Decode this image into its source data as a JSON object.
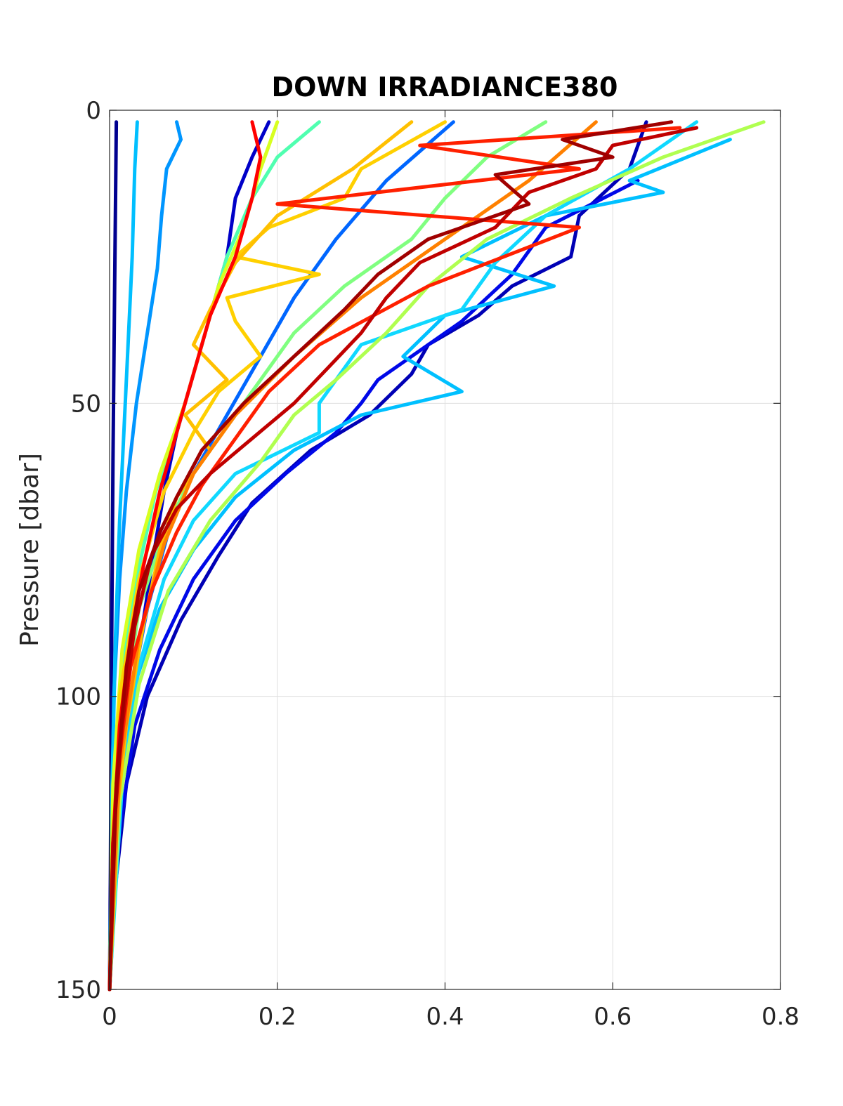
{
  "chart_data": {
    "type": "line",
    "title": "DOWN IRRADIANCE380",
    "xlabel": "",
    "ylabel": "Pressure [dbar]",
    "xlim": [
      0,
      0.8
    ],
    "ylim": [
      0,
      150
    ],
    "y_reversed": true,
    "grid": true,
    "legend": "none",
    "xticks": [
      0,
      0.2,
      0.4,
      0.6,
      0.8
    ],
    "xtick_labels": [
      "0",
      "0.2",
      "0.4",
      "0.6",
      "0.8"
    ],
    "yticks": [
      0,
      50,
      100,
      150
    ],
    "ytick_labels": [
      "0",
      "50",
      "100",
      "150"
    ],
    "series": [
      {
        "color": "#00008f",
        "x": [
          0.008,
          0.006,
          0.004,
          0.002,
          0.001,
          0.0
        ],
        "y": [
          2,
          30,
          60,
          100,
          130,
          150
        ]
      },
      {
        "color": "#0000c8",
        "x": [
          0.19,
          0.17,
          0.15,
          0.14,
          0.12,
          0.1,
          0.08,
          0.065,
          0.05,
          0.035,
          0.02,
          0.01,
          0.004,
          0.0
        ],
        "y": [
          2,
          8,
          15,
          25,
          35,
          45,
          55,
          65,
          78,
          92,
          105,
          120,
          135,
          150
        ]
      },
      {
        "color": "#0000b5",
        "x": [
          0.64,
          0.62,
          0.56,
          0.55,
          0.48,
          0.44,
          0.38,
          0.36,
          0.31,
          0.24,
          0.17,
          0.13,
          0.085,
          0.045,
          0.02,
          0.005,
          0.0
        ],
        "y": [
          2,
          10,
          18,
          25,
          30,
          35,
          40,
          45,
          52,
          58,
          67,
          76,
          87,
          100,
          115,
          135,
          150
        ]
      },
      {
        "color": "#0008e8",
        "x": [
          0.63,
          0.52,
          0.48,
          0.42,
          0.36,
          0.32,
          0.3,
          0.27,
          0.21,
          0.15,
          0.1,
          0.06,
          0.03,
          0.01,
          0.0
        ],
        "y": [
          12,
          20,
          28,
          36,
          42,
          46,
          50,
          55,
          62,
          70,
          80,
          92,
          105,
          125,
          150
        ]
      },
      {
        "color": "#0066ff",
        "x": [
          0.41,
          0.33,
          0.27,
          0.22,
          0.18,
          0.14,
          0.1,
          0.07,
          0.045,
          0.025,
          0.01,
          0.0
        ],
        "y": [
          2,
          12,
          22,
          32,
          42,
          52,
          62,
          72,
          85,
          100,
          120,
          150
        ]
      },
      {
        "color": "#0096ff",
        "x": [
          0.08,
          0.085,
          0.068,
          0.062,
          0.057,
          0.045,
          0.032,
          0.02,
          0.012,
          0.005,
          0.0
        ],
        "y": [
          2,
          5,
          10,
          18,
          27,
          38,
          50,
          65,
          80,
          100,
          150
        ]
      },
      {
        "color": "#00bfff",
        "x": [
          0.033,
          0.03,
          0.027,
          0.022,
          0.017,
          0.012,
          0.007,
          0.003,
          0.0
        ],
        "y": [
          2,
          10,
          25,
          40,
          55,
          70,
          90,
          115,
          150
        ]
      },
      {
        "color": "#00c0ff",
        "x": [
          0.74,
          0.62,
          0.66,
          0.52,
          0.42,
          0.53,
          0.4,
          0.35,
          0.42,
          0.3,
          0.22,
          0.15,
          0.1,
          0.06,
          0.03,
          0.01,
          0.0
        ],
        "y": [
          5,
          12,
          14,
          18,
          25,
          30,
          35,
          42,
          48,
          52,
          58,
          66,
          75,
          85,
          98,
          120,
          150
        ]
      },
      {
        "color": "#10d8ff",
        "x": [
          0.7,
          0.62,
          0.52,
          0.46,
          0.42,
          0.3,
          0.25,
          0.25,
          0.15,
          0.1,
          0.065,
          0.035,
          0.015,
          0.0
        ],
        "y": [
          2,
          10,
          18,
          26,
          34,
          40,
          50,
          55,
          62,
          70,
          80,
          95,
          115,
          150
        ]
      },
      {
        "color": "#50ffb0",
        "x": [
          0.25,
          0.2,
          0.17,
          0.14,
          0.12,
          0.1,
          0.08,
          0.055,
          0.035,
          0.018,
          0.005,
          0.0
        ],
        "y": [
          2,
          8,
          15,
          25,
          35,
          45,
          55,
          65,
          78,
          92,
          115,
          150
        ]
      },
      {
        "color": "#80ff80",
        "x": [
          0.52,
          0.45,
          0.4,
          0.36,
          0.28,
          0.22,
          0.18,
          0.14,
          0.1,
          0.065,
          0.035,
          0.015,
          0.0
        ],
        "y": [
          2,
          8,
          15,
          22,
          30,
          38,
          46,
          54,
          62,
          72,
          85,
          105,
          150
        ]
      },
      {
        "color": "#b0ff50",
        "x": [
          0.78,
          0.66,
          0.55,
          0.45,
          0.38,
          0.33,
          0.27,
          0.22,
          0.18,
          0.12,
          0.07,
          0.035,
          0.012,
          0.0
        ],
        "y": [
          2,
          8,
          15,
          22,
          30,
          38,
          46,
          52,
          60,
          70,
          82,
          98,
          118,
          150
        ]
      },
      {
        "color": "#d8ff20",
        "x": [
          0.2,
          0.18,
          0.16,
          0.13,
          0.11,
          0.09,
          0.06,
          0.035,
          0.015,
          0.004,
          0.0
        ],
        "y": [
          2,
          10,
          20,
          30,
          40,
          50,
          62,
          75,
          92,
          115,
          150
        ]
      },
      {
        "color": "#ffd000",
        "x": [
          0.4,
          0.3,
          0.28,
          0.19,
          0.15,
          0.25,
          0.14,
          0.15,
          0.18,
          0.13,
          0.1,
          0.065,
          0.035,
          0.012,
          0.0
        ],
        "y": [
          2,
          10,
          15,
          20,
          25,
          28,
          32,
          36,
          42,
          48,
          55,
          65,
          80,
          100,
          150
        ]
      },
      {
        "color": "#ffc000",
        "x": [
          0.36,
          0.29,
          0.2,
          0.15,
          0.12,
          0.1,
          0.14,
          0.09,
          0.12,
          0.08,
          0.06,
          0.04,
          0.02,
          0.005,
          0.0
        ],
        "y": [
          2,
          10,
          18,
          26,
          34,
          40,
          46,
          52,
          58,
          66,
          75,
          88,
          105,
          125,
          150
        ]
      },
      {
        "color": "#ff8000",
        "x": [
          0.58,
          0.5,
          0.4,
          0.3,
          0.22,
          0.15,
          0.1,
          0.065,
          0.035,
          0.012,
          0.0
        ],
        "y": [
          2,
          12,
          22,
          32,
          42,
          52,
          62,
          74,
          90,
          112,
          150
        ]
      },
      {
        "color": "#ff2000",
        "x": [
          0.68,
          0.37,
          0.56,
          0.2,
          0.56,
          0.38,
          0.25,
          0.19,
          0.15,
          0.11,
          0.08,
          0.05,
          0.025,
          0.008,
          0.0
        ],
        "y": [
          3,
          6,
          10,
          16,
          20,
          30,
          40,
          48,
          56,
          64,
          72,
          82,
          95,
          115,
          150
        ]
      },
      {
        "color": "#ff0000",
        "x": [
          0.17,
          0.18,
          0.17,
          0.15,
          0.12,
          0.1,
          0.08,
          0.06,
          0.04,
          0.025,
          0.012,
          0.004,
          0.0
        ],
        "y": [
          2,
          8,
          15,
          25,
          35,
          45,
          55,
          65,
          78,
          90,
          105,
          125,
          150
        ]
      },
      {
        "color": "#c00000",
        "x": [
          0.7,
          0.6,
          0.58,
          0.5,
          0.46,
          0.37,
          0.33,
          0.3,
          0.26,
          0.22,
          0.17,
          0.12,
          0.08,
          0.05,
          0.03,
          0.015,
          0.004,
          0.0
        ],
        "y": [
          3,
          6,
          10,
          14,
          20,
          26,
          32,
          38,
          44,
          50,
          56,
          62,
          68,
          76,
          88,
          105,
          125,
          150
        ]
      },
      {
        "color": "#a00000",
        "x": [
          0.67,
          0.54,
          0.6,
          0.46,
          0.5,
          0.38,
          0.32,
          0.28,
          0.22,
          0.16,
          0.11,
          0.08,
          0.06,
          0.035,
          0.02,
          0.008,
          0.0
        ],
        "y": [
          2,
          5,
          8,
          11,
          16,
          22,
          28,
          34,
          42,
          50,
          58,
          66,
          72,
          82,
          95,
          115,
          150
        ]
      }
    ]
  }
}
